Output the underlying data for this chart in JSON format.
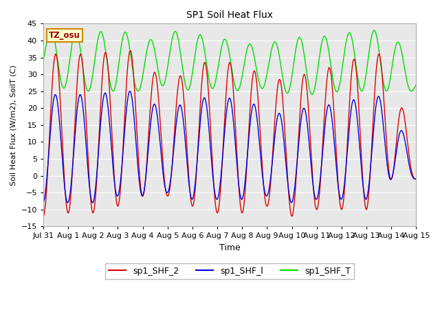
{
  "title": "SP1 Soil Heat Flux",
  "xlabel": "Time",
  "ylabel": "Soil Heat Flux (W/m2), SoilT (C)",
  "ylim": [
    -15,
    45
  ],
  "yticks": [
    -15,
    -10,
    -5,
    0,
    5,
    10,
    15,
    20,
    25,
    30,
    35,
    40,
    45
  ],
  "xtick_labels": [
    "Jul 31",
    "Aug 1",
    "Aug 2",
    "Aug 3",
    "Aug 4",
    "Aug 5",
    "Aug 6",
    "Aug 7",
    "Aug 8",
    "Aug 9",
    "Aug 10",
    "Aug 11",
    "Aug 12",
    "Aug 13",
    "Aug 14",
    "Aug 15"
  ],
  "color_shf2": "#dd0000",
  "color_shf1": "#0000dd",
  "color_shft": "#00dd00",
  "tz_label": "TZ_osu",
  "bg_color": "#e8e8e8",
  "n_days": 15,
  "points_per_day": 96
}
